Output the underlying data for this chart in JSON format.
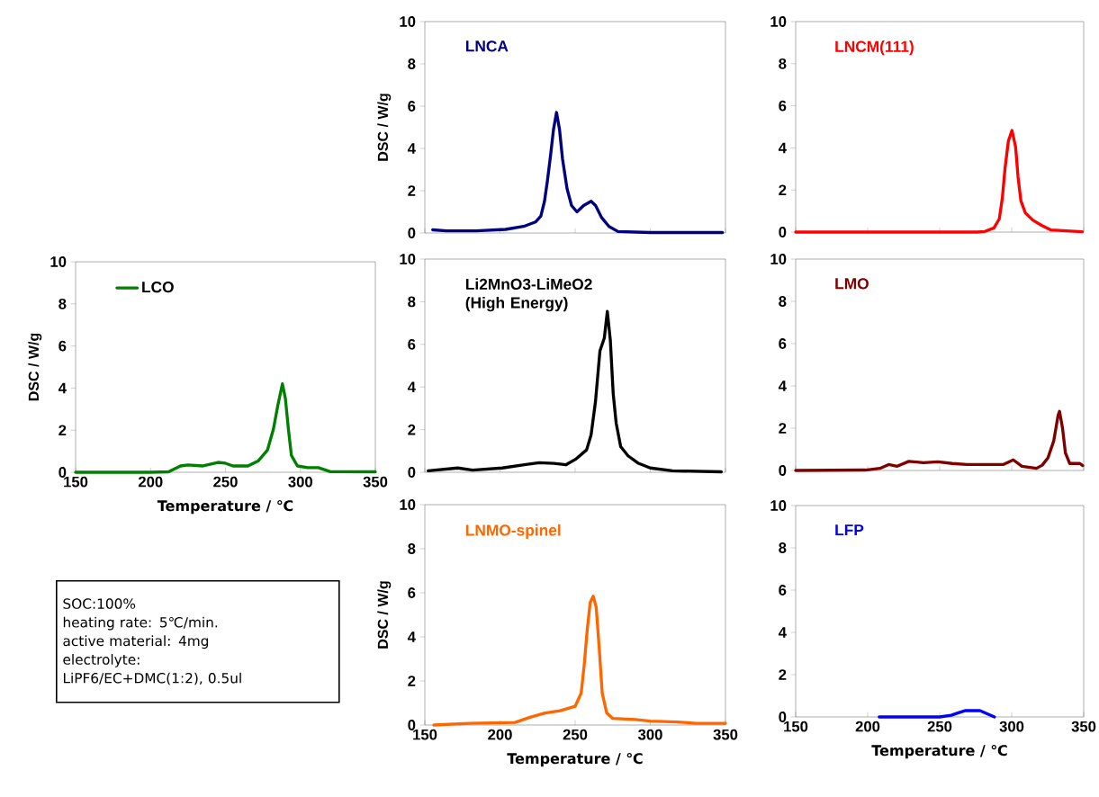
{
  "chart_data": [
    {
      "type": "line",
      "ylabel": "DSC / W/g",
      "xlim": [
        150,
        350
      ],
      "xticks": [
        150,
        200,
        250,
        300,
        350
      ],
      "ylim": [
        0,
        10
      ],
      "yticks": [
        0,
        2,
        4,
        6,
        8,
        10
      ],
      "tick_labels": "y",
      "series": [
        {
          "name": "LNCA",
          "color": "#000080",
          "x": [
            155.2,
            164.4,
            184,
            203.7,
            215.7,
            223.6,
            227.2,
            229.6,
            231.6,
            233.6,
            235.6,
            237.6,
            239.6,
            241.6,
            244.6,
            247.6,
            251.2,
            255.6,
            260.6,
            263.6,
            267.5,
            272.5,
            278.5,
            300,
            348
          ],
          "values": [
            0.15,
            0.1,
            0.1,
            0.17,
            0.31,
            0.52,
            0.8,
            1.5,
            2.5,
            3.65,
            4.9,
            5.7,
            4.9,
            3.5,
            2.1,
            1.3,
            1.0,
            1.3,
            1.5,
            1.3,
            0.74,
            0.31,
            0.07,
            0.02,
            0.02
          ]
        }
      ]
    },
    {
      "type": "line",
      "xlim": [
        150,
        350
      ],
      "xticks": [
        150,
        200,
        250,
        300,
        350
      ],
      "ylim": [
        0,
        10
      ],
      "yticks": [
        0,
        2,
        4,
        6,
        8,
        10
      ],
      "tick_labels": "y",
      "series": [
        {
          "name": "LNCM(111)",
          "color": "#FF0000",
          "x": [
            150,
            276,
            281.4,
            287.7,
            291.4,
            293.5,
            295.4,
            297.7,
            300.2,
            302.7,
            304.4,
            306.4,
            309.5,
            314.8,
            321,
            327.3,
            349
          ],
          "values": [
            0,
            0,
            0.03,
            0.2,
            0.63,
            1.62,
            3.05,
            4.33,
            4.83,
            4.05,
            2.62,
            1.48,
            0.91,
            0.56,
            0.31,
            0.1,
            0.02
          ]
        }
      ]
    },
    {
      "type": "line",
      "xlabel": "Temperature / ℃",
      "ylabel": "DSC / W/g",
      "xlim": [
        150,
        350
      ],
      "xticks": [
        150,
        200,
        250,
        300,
        350
      ],
      "ylim": [
        0,
        10
      ],
      "yticks": [
        0,
        2,
        4,
        6,
        8,
        10
      ],
      "legend": "top left",
      "series": [
        {
          "name": "LCO",
          "color": "#008000",
          "x": [
            150,
            200,
            212,
            220,
            225,
            235,
            245,
            250,
            255,
            265,
            272,
            278,
            282,
            285,
            288,
            290,
            292,
            294,
            298,
            305,
            312,
            320,
            350
          ],
          "values": [
            0,
            0,
            0.02,
            0.3,
            0.35,
            0.3,
            0.47,
            0.43,
            0.3,
            0.3,
            0.55,
            1.05,
            2.05,
            3.2,
            4.2,
            3.5,
            2.05,
            0.8,
            0.3,
            0.22,
            0.22,
            0.03,
            0.02
          ]
        }
      ]
    },
    {
      "type": "line",
      "xlim": [
        150,
        350
      ],
      "xticks": [
        150,
        200,
        250,
        300,
        350
      ],
      "ylim": [
        0,
        10
      ],
      "yticks": [
        0,
        2,
        4,
        6,
        8,
        10
      ],
      "tick_labels": "y",
      "series": [
        {
          "name": "Li2MnO3-LiMeO2 (High Energy)",
          "color": "#000000",
          "x": [
            152.2,
            171.9,
            181.8,
            201.5,
            216.2,
            226.1,
            235.9,
            243.8,
            250.7,
            257.6,
            260.6,
            263.5,
            266.5,
            269.4,
            271.4,
            273.4,
            275.3,
            277.3,
            280.3,
            285.2,
            292.1,
            300,
            314.7,
            347.2
          ],
          "values": [
            0.07,
            0.2,
            0.1,
            0.2,
            0.35,
            0.45,
            0.42,
            0.35,
            0.63,
            1.05,
            1.75,
            3.3,
            5.7,
            6.3,
            7.55,
            6.2,
            3.7,
            2.3,
            1.2,
            0.77,
            0.42,
            0.2,
            0.07,
            0.02
          ]
        }
      ]
    },
    {
      "type": "line",
      "xlim": [
        150,
        350
      ],
      "xticks": [
        150,
        200,
        250,
        300,
        350
      ],
      "ylim": [
        0,
        10
      ],
      "yticks": [
        0,
        2,
        4,
        6,
        8,
        10
      ],
      "tick_labels": "y",
      "series": [
        {
          "name": "LMO",
          "color": "#800000",
          "x": [
            150,
            198.4,
            208.5,
            214.5,
            220.5,
            228.6,
            238.7,
            248.7,
            258.8,
            268.9,
            294,
            301.1,
            307.1,
            317.2,
            321.2,
            325.2,
            329.2,
            332.2,
            333.2,
            335.3,
            337.3,
            340.3,
            347.3,
            349.3
          ],
          "values": [
            0,
            0.02,
            0.1,
            0.28,
            0.2,
            0.43,
            0.37,
            0.41,
            0.33,
            0.28,
            0.28,
            0.5,
            0.2,
            0.1,
            0.25,
            0.6,
            1.4,
            2.6,
            2.8,
            2.0,
            0.83,
            0.33,
            0.33,
            0.23
          ]
        }
      ]
    },
    {
      "type": "other",
      "annotations": [
        "SOC:100%",
        "heating rate: 5℃/min.",
        "active material: 4mg",
        "electrolyte:",
        "LiPF6/EC+DMC(1:2), 0.5ul"
      ]
    },
    {
      "type": "line",
      "xlabel": "Temperature / ℃",
      "ylabel": "DSC / W/g",
      "xlim": [
        150,
        350
      ],
      "xticks": [
        150,
        200,
        250,
        300,
        350
      ],
      "ylim": [
        0,
        10
      ],
      "yticks": [
        0,
        2,
        4,
        6,
        8,
        10
      ],
      "series": [
        {
          "name": "LNMO-spinel",
          "color": "#FF6600",
          "x": [
            156,
            180,
            210,
            220,
            230,
            240,
            250,
            254,
            256,
            258,
            260,
            262,
            264,
            266,
            268,
            271,
            275,
            290,
            300,
            318,
            330,
            350
          ],
          "values": [
            0,
            0.08,
            0.12,
            0.35,
            0.55,
            0.65,
            0.85,
            1.45,
            2.7,
            4.3,
            5.55,
            5.85,
            5.35,
            3.5,
            1.45,
            0.55,
            0.3,
            0.25,
            0.18,
            0.14,
            0.08,
            0.08
          ]
        }
      ]
    },
    {
      "type": "line",
      "xlabel": "Temperature / ℃",
      "xlim": [
        150,
        350
      ],
      "xticks": [
        150,
        200,
        250,
        300,
        350
      ],
      "ylim": [
        0,
        10
      ],
      "yticks": [
        0,
        2,
        4,
        6,
        8,
        10
      ],
      "series": [
        {
          "name": "LFP",
          "color": "#0000FF",
          "x": [
            208,
            250,
            258,
            263,
            268,
            278,
            283,
            288
          ],
          "values": [
            0,
            0,
            0.08,
            0.2,
            0.3,
            0.3,
            0.15,
            0
          ]
        }
      ]
    }
  ]
}
